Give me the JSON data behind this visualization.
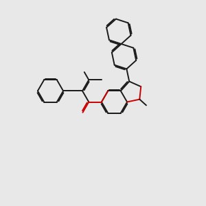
{
  "bg_color": "#e8e8e8",
  "bond_color": "#1a1a1a",
  "o_color": "#cc0000",
  "lw": 1.4,
  "dbo": 0.055,
  "figsize": [
    3.0,
    3.0
  ],
  "dpi": 100
}
